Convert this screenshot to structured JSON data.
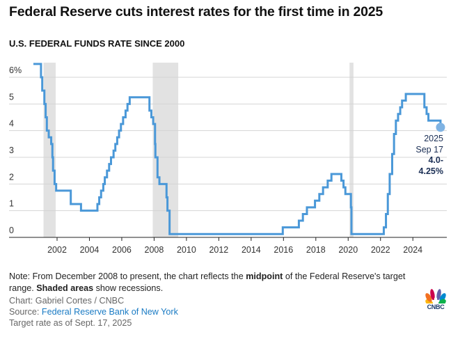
{
  "title": "Federal Reserve cuts interest rates for the first time in 2025",
  "subtitle": "U.S. FEDERAL FUNDS RATE SINCE 2000",
  "chart_data": {
    "type": "line",
    "step": true,
    "xlim": [
      1999.03,
      2026.1
    ],
    "ylim": [
      0,
      6
    ],
    "y_ticks": [
      0,
      1,
      2,
      3,
      4,
      5,
      6
    ],
    "y_tick_labels": [
      "0",
      "1",
      "2",
      "3",
      "4",
      "5",
      "6%"
    ],
    "x_ticks": [
      2002,
      2004,
      2006,
      2008,
      2010,
      2012,
      2014,
      2016,
      2018,
      2020,
      2022,
      2024
    ],
    "x_tick_labels": [
      "2002",
      "2004",
      "2006",
      "2008",
      "2010",
      "2012",
      "2014",
      "2016",
      "2018",
      "2020",
      "2022",
      "2024"
    ],
    "grid": true,
    "line_color": "#4a98d8",
    "recession_color": "#e2e2e2",
    "recessions": [
      [
        "2001-03-01",
        "2001-11-30"
      ],
      [
        "2007-12-01",
        "2009-06-30"
      ],
      [
        "2020-02-01",
        "2020-04-30"
      ]
    ],
    "series": [
      {
        "points": [
          [
            "2000-07-15",
            6.5
          ],
          [
            "2001-01-03",
            6.0
          ],
          [
            "2001-01-31",
            5.5
          ],
          [
            "2001-03-20",
            5.0
          ],
          [
            "2001-04-18",
            4.5
          ],
          [
            "2001-05-15",
            4.0
          ],
          [
            "2001-06-27",
            3.75
          ],
          [
            "2001-08-21",
            3.5
          ],
          [
            "2001-09-17",
            3.0
          ],
          [
            "2001-10-02",
            2.5
          ],
          [
            "2001-11-06",
            2.0
          ],
          [
            "2001-12-11",
            1.75
          ],
          [
            "2002-11-06",
            1.25
          ],
          [
            "2003-06-25",
            1.0
          ],
          [
            "2004-06-30",
            1.25
          ],
          [
            "2004-08-10",
            1.5
          ],
          [
            "2004-09-21",
            1.75
          ],
          [
            "2004-11-10",
            2.0
          ],
          [
            "2004-12-14",
            2.25
          ],
          [
            "2005-02-02",
            2.5
          ],
          [
            "2005-03-22",
            2.75
          ],
          [
            "2005-05-03",
            3.0
          ],
          [
            "2005-06-30",
            3.25
          ],
          [
            "2005-08-09",
            3.5
          ],
          [
            "2005-09-20",
            3.75
          ],
          [
            "2005-11-01",
            4.0
          ],
          [
            "2005-12-13",
            4.25
          ],
          [
            "2006-01-31",
            4.5
          ],
          [
            "2006-03-28",
            4.75
          ],
          [
            "2006-05-10",
            5.0
          ],
          [
            "2006-06-29",
            5.25
          ],
          [
            "2007-09-18",
            4.75
          ],
          [
            "2007-10-31",
            4.5
          ],
          [
            "2007-12-11",
            4.25
          ],
          [
            "2008-01-22",
            3.5
          ],
          [
            "2008-01-30",
            3.0
          ],
          [
            "2008-03-18",
            2.25
          ],
          [
            "2008-04-30",
            2.0
          ],
          [
            "2008-10-08",
            1.5
          ],
          [
            "2008-10-29",
            1.0
          ],
          [
            "2008-12-16",
            0.125
          ],
          [
            "2015-12-16",
            0.375
          ],
          [
            "2016-12-14",
            0.625
          ],
          [
            "2017-03-15",
            0.875
          ],
          [
            "2017-06-14",
            1.125
          ],
          [
            "2017-12-13",
            1.375
          ],
          [
            "2018-03-21",
            1.625
          ],
          [
            "2018-06-13",
            1.875
          ],
          [
            "2018-09-26",
            2.125
          ],
          [
            "2018-12-19",
            2.375
          ],
          [
            "2019-07-31",
            2.125
          ],
          [
            "2019-09-18",
            1.875
          ],
          [
            "2019-10-30",
            1.625
          ],
          [
            "2020-03-03",
            1.125
          ],
          [
            "2020-03-15",
            0.125
          ],
          [
            "2022-03-16",
            0.375
          ],
          [
            "2022-05-04",
            0.875
          ],
          [
            "2022-06-15",
            1.625
          ],
          [
            "2022-07-27",
            2.375
          ],
          [
            "2022-09-21",
            3.125
          ],
          [
            "2022-11-02",
            3.875
          ],
          [
            "2022-12-14",
            4.375
          ],
          [
            "2023-02-01",
            4.625
          ],
          [
            "2023-03-22",
            4.875
          ],
          [
            "2023-05-03",
            5.125
          ],
          [
            "2023-07-26",
            5.375
          ],
          [
            "2024-09-18",
            4.875
          ],
          [
            "2024-11-07",
            4.625
          ],
          [
            "2024-12-18",
            4.375
          ],
          [
            "2025-09-17",
            4.125
          ]
        ]
      }
    ],
    "annotation": {
      "line1": "2025",
      "line2": "Sep 17",
      "line3": "4.0-",
      "line4": "4.25%"
    }
  },
  "note": {
    "p1": "Note: From December 2008 to present, the chart reflects the ",
    "b1": "midpoint",
    "p2": " of the Federal Reserve's target range. ",
    "b2": "Shaded areas",
    "p3": " show recessions."
  },
  "credit": "Chart: Gabriel Cortes / CNBC",
  "source_label": "Source: ",
  "source_link": "Federal Reserve Bank of New York",
  "target_note": "Target rate as of Sept. 17, 2025",
  "logo": "CNBC"
}
